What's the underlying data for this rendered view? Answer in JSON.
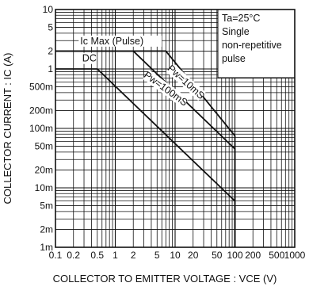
{
  "chart_data": {
    "type": "line",
    "title": "",
    "xlabel": "COLLECTOR TO EMITTER VOLTAGE : VCE (V)",
    "ylabel": "COLLECTOR CURRENT : IC (A)",
    "xscale": "log",
    "yscale": "log",
    "xlim": [
      0.1,
      1000
    ],
    "ylim": [
      0.001,
      10
    ],
    "grid": true,
    "x_ticks": [
      {
        "value": 0.1,
        "label": "0.1"
      },
      {
        "value": 0.2,
        "label": "0.2"
      },
      {
        "value": 0.5,
        "label": "0.5"
      },
      {
        "value": 1,
        "label": "1"
      },
      {
        "value": 2,
        "label": "2"
      },
      {
        "value": 5,
        "label": "5"
      },
      {
        "value": 10,
        "label": "10"
      },
      {
        "value": 20,
        "label": "20"
      },
      {
        "value": 50,
        "label": "50"
      },
      {
        "value": 100,
        "label": "100"
      },
      {
        "value": 200,
        "label": "200"
      },
      {
        "value": 500,
        "label": "500"
      },
      {
        "value": 1000,
        "label": "1000"
      }
    ],
    "y_ticks": [
      {
        "value": 10,
        "label": "10"
      },
      {
        "value": 5,
        "label": "5"
      },
      {
        "value": 2,
        "label": "2"
      },
      {
        "value": 1,
        "label": "1"
      },
      {
        "value": 0.5,
        "label": "500m"
      },
      {
        "value": 0.2,
        "label": "200m"
      },
      {
        "value": 0.1,
        "label": "100m"
      },
      {
        "value": 0.05,
        "label": "50m"
      },
      {
        "value": 0.02,
        "label": "20m"
      },
      {
        "value": 0.01,
        "label": "10m"
      },
      {
        "value": 0.005,
        "label": "5m"
      },
      {
        "value": 0.002,
        "label": "2m"
      },
      {
        "value": 0.001,
        "label": "1m"
      }
    ],
    "series": [
      {
        "name": "Pw=10mS",
        "points": [
          [
            0.1,
            2
          ],
          [
            7,
            2
          ],
          [
            100,
            0.075
          ],
          [
            100,
            0.001
          ]
        ]
      },
      {
        "name": "Pw=100mS",
        "points": [
          [
            0.1,
            2
          ],
          [
            2,
            2
          ],
          [
            100,
            0.045
          ],
          [
            100,
            0.001
          ]
        ]
      },
      {
        "name": "DC",
        "points": [
          [
            0.1,
            1
          ],
          [
            0.5,
            1
          ],
          [
            100,
            0.006
          ],
          [
            100,
            0.001
          ]
        ]
      }
    ],
    "annotations": [
      {
        "id": "icmax",
        "text": "Ic Max (Pulse)"
      },
      {
        "id": "dc",
        "text": "DC"
      },
      {
        "id": "pw10",
        "text": "Pw=10mS"
      },
      {
        "id": "pw100",
        "text": "Pw=100mS"
      }
    ],
    "note_lines": [
      "Ta=25°C",
      "Single",
      "non-repetitive",
      "pulse"
    ],
    "colors": {
      "line": "#111111",
      "grid": "#111111",
      "background": "#ffffff"
    }
  }
}
